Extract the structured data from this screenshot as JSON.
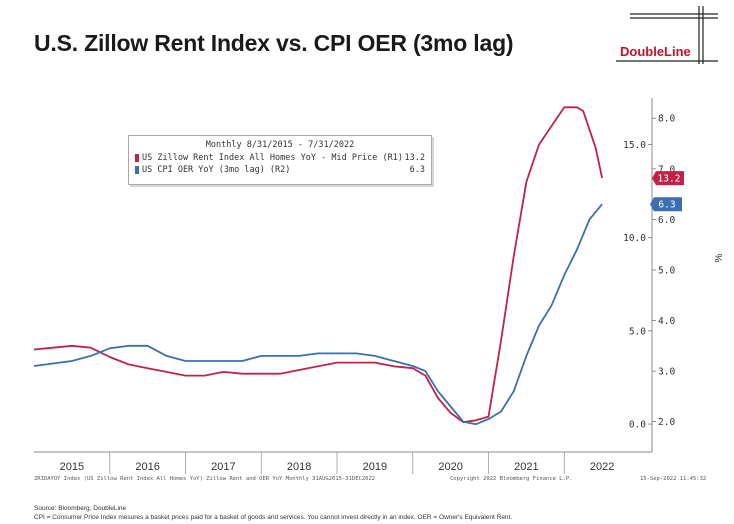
{
  "header": {
    "title": "U.S. Zillow Rent Index vs. CPI OER (3mo lag)",
    "logo_text": "DoubleLine"
  },
  "chart_data": {
    "type": "line",
    "title": "U.S. Zillow Rent Index vs. CPI OER (3mo lag)",
    "legend": {
      "title": "Monthly 8/31/2015 - 7/31/2022",
      "placement": "top-left",
      "entries": [
        {
          "name": "US Zillow Rent Index All Homes YoY - Mid Price (R1)",
          "value": "13.2",
          "color": "#c0234a"
        },
        {
          "name": "US CPI OER YoY (3mo lag) (R2)",
          "value": "6.3",
          "color": "#3a6fb0"
        }
      ]
    },
    "x_ticks": [
      "2015",
      "2016",
      "2017",
      "2018",
      "2019",
      "2020",
      "2021",
      "2022"
    ],
    "x_range": [
      "2015-01",
      "2022-12"
    ],
    "axis_unit": "%",
    "r1_axis": {
      "range": [
        -1.5,
        17.5
      ],
      "ticks": [
        "0.0",
        "5.0",
        "10.0",
        "15.0"
      ]
    },
    "r2_axis": {
      "range": [
        1.4,
        8.4
      ],
      "ticks": [
        "2.0",
        "3.0",
        "4.0",
        "5.0",
        "6.0",
        "7.0",
        "8.0"
      ]
    },
    "grid": false,
    "series": [
      {
        "name": "US Zillow Rent Index All Homes YoY - Mid Price (R1)",
        "axis": "R1",
        "color": "#c0234a",
        "end_label": "13.2",
        "points": [
          [
            "2015-01",
            4.0
          ],
          [
            "2015-04",
            4.1
          ],
          [
            "2015-07",
            4.2
          ],
          [
            "2015-10",
            4.1
          ],
          [
            "2016-01",
            3.6
          ],
          [
            "2016-04",
            3.2
          ],
          [
            "2016-07",
            3.0
          ],
          [
            "2016-10",
            2.8
          ],
          [
            "2017-01",
            2.6
          ],
          [
            "2017-04",
            2.6
          ],
          [
            "2017-07",
            2.8
          ],
          [
            "2017-10",
            2.7
          ],
          [
            "2018-01",
            2.7
          ],
          [
            "2018-04",
            2.7
          ],
          [
            "2018-07",
            2.9
          ],
          [
            "2018-10",
            3.1
          ],
          [
            "2019-01",
            3.3
          ],
          [
            "2019-04",
            3.3
          ],
          [
            "2019-07",
            3.3
          ],
          [
            "2019-10",
            3.1
          ],
          [
            "2020-01",
            3.0
          ],
          [
            "2020-03",
            2.6
          ],
          [
            "2020-05",
            1.4
          ],
          [
            "2020-07",
            0.6
          ],
          [
            "2020-09",
            0.1
          ],
          [
            "2020-11",
            0.2
          ],
          [
            "2021-01",
            0.4
          ],
          [
            "2021-03",
            4.5
          ],
          [
            "2021-05",
            9.0
          ],
          [
            "2021-07",
            13.0
          ],
          [
            "2021-09",
            15.0
          ],
          [
            "2021-11",
            16.0
          ],
          [
            "2022-01",
            17.0
          ],
          [
            "2022-03",
            17.0
          ],
          [
            "2022-04",
            16.8
          ],
          [
            "2022-05",
            15.8
          ],
          [
            "2022-06",
            14.8
          ],
          [
            "2022-07",
            13.2
          ]
        ]
      },
      {
        "name": "US CPI OER YoY (3mo lag) (R2)",
        "axis": "R2",
        "color": "#3a6fb0",
        "end_label": "6.3",
        "points": [
          [
            "2015-01",
            3.1
          ],
          [
            "2015-04",
            3.15
          ],
          [
            "2015-07",
            3.2
          ],
          [
            "2015-10",
            3.3
          ],
          [
            "2016-01",
            3.45
          ],
          [
            "2016-04",
            3.5
          ],
          [
            "2016-07",
            3.5
          ],
          [
            "2016-10",
            3.3
          ],
          [
            "2017-01",
            3.2
          ],
          [
            "2017-04",
            3.2
          ],
          [
            "2017-07",
            3.2
          ],
          [
            "2017-10",
            3.2
          ],
          [
            "2018-01",
            3.3
          ],
          [
            "2018-04",
            3.3
          ],
          [
            "2018-07",
            3.3
          ],
          [
            "2018-10",
            3.35
          ],
          [
            "2019-01",
            3.35
          ],
          [
            "2019-04",
            3.35
          ],
          [
            "2019-07",
            3.3
          ],
          [
            "2019-10",
            3.2
          ],
          [
            "2020-01",
            3.1
          ],
          [
            "2020-03",
            3.0
          ],
          [
            "2020-05",
            2.6
          ],
          [
            "2020-07",
            2.3
          ],
          [
            "2020-09",
            2.0
          ],
          [
            "2020-11",
            1.95
          ],
          [
            "2021-01",
            2.05
          ],
          [
            "2021-03",
            2.2
          ],
          [
            "2021-05",
            2.6
          ],
          [
            "2021-07",
            3.3
          ],
          [
            "2021-09",
            3.9
          ],
          [
            "2021-11",
            4.3
          ],
          [
            "2022-01",
            4.9
          ],
          [
            "2022-03",
            5.4
          ],
          [
            "2022-05",
            6.0
          ],
          [
            "2022-07",
            6.3
          ]
        ]
      }
    ]
  },
  "footer": {
    "left": "ZRIDAYOY Index (US Zillow Rent Index All Homes YoY) Zillow Rent and OER YoY Monthly 31AUG2015-31DEC2022",
    "middle": "Copyright 2022 Bloomberg Finance L.P.",
    "right": "15-Sep-2022 11:45:32",
    "source": "Source: Bloomberg, DoubleLine",
    "note": "CPI = Consumer Price Index mesures a basket prices paid for a basket of goods and services. You cannot invest directly in an index. OER = Owner's Equivalent Rent."
  }
}
